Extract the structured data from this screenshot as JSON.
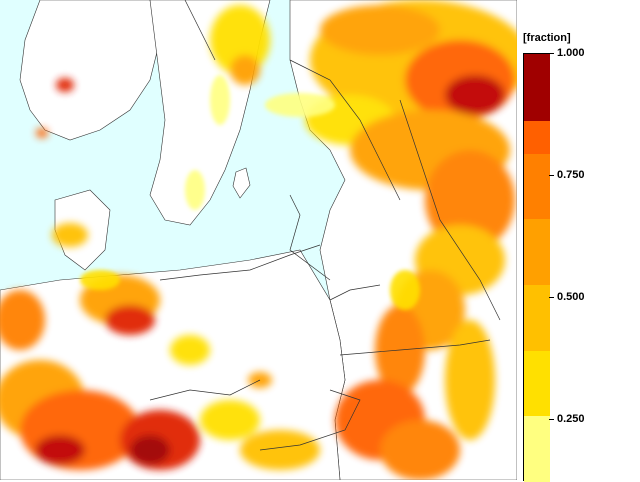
{
  "legend": {
    "unit_label": "[fraction]",
    "tick_labels": [
      "1.000",
      "0.750",
      "0.500",
      "0.250"
    ],
    "tick_values": [
      1.0,
      0.75,
      0.5,
      0.25
    ],
    "range": [
      0.125,
      1.0
    ],
    "colors": [
      "#ffff80",
      "#ffe000",
      "#ffc000",
      "#ffa000",
      "#ff8000",
      "#ff6000",
      "#ff4000",
      "#e02000",
      "#c00000",
      "#a00000"
    ],
    "sea_color": "#e0ffff",
    "land_color": "#ffffff",
    "contour_color": "#00c0e0"
  },
  "map": {
    "icon": "map-field-icon"
  }
}
